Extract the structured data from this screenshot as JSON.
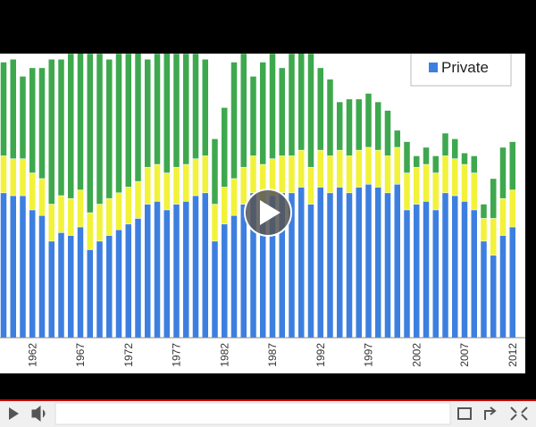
{
  "chart_data": {
    "type": "stacked_bar",
    "categories": [
      null,
      null,
      null,
      "1962",
      null,
      null,
      null,
      null,
      "1967",
      null,
      null,
      null,
      null,
      "1972",
      null,
      null,
      null,
      null,
      "1977",
      null,
      null,
      null,
      null,
      "1982",
      null,
      null,
      null,
      null,
      "1987",
      null,
      null,
      null,
      null,
      "1992",
      null,
      null,
      null,
      null,
      "1997",
      null,
      null,
      null,
      null,
      "2002",
      null,
      null,
      null,
      null,
      "2007",
      null,
      null,
      null,
      null,
      "2012"
    ],
    "series": [
      {
        "name": "Private",
        "color": "#3d7fe0",
        "values": [
          51,
          50,
          50,
          45,
          43,
          34,
          37,
          36,
          39,
          31,
          34,
          36,
          38,
          40,
          42,
          47,
          48,
          45,
          47,
          48,
          50,
          51,
          34,
          40,
          43,
          47,
          51,
          48,
          50,
          51,
          51,
          53,
          47,
          53,
          51,
          53,
          51,
          53,
          54,
          53,
          51,
          54,
          45,
          47,
          48,
          45,
          51,
          50,
          48,
          45,
          34,
          29,
          36,
          39
        ]
      },
      {
        "color": "#f2f23a",
        "values": [
          13,
          13,
          13,
          13,
          13,
          13,
          13,
          13,
          13,
          13,
          13,
          13,
          13,
          13,
          13,
          13,
          13,
          13,
          13,
          13,
          13,
          13,
          13,
          13,
          13,
          13,
          13,
          13,
          13,
          13,
          13,
          13,
          13,
          13,
          13,
          13,
          13,
          13,
          13,
          13,
          13,
          13,
          13,
          13,
          13,
          13,
          13,
          13,
          13,
          13,
          8,
          13,
          13,
          13
        ]
      },
      {
        "color": "#3ea84e",
        "values": [
          33,
          35,
          29,
          37,
          39,
          51,
          48,
          51,
          50,
          56,
          53,
          49,
          49,
          47,
          47,
          38,
          39,
          44,
          40,
          39,
          37,
          34,
          23,
          28,
          41,
          40,
          28,
          36,
          37,
          31,
          36,
          36,
          40,
          29,
          27,
          17,
          20,
          18,
          19,
          17,
          16,
          6,
          11,
          4,
          6,
          6,
          8,
          7,
          4,
          6,
          5,
          14,
          18,
          17
        ]
      }
    ],
    "ylim": [
      0,
      100
    ],
    "legend": "top-right"
  }
}
